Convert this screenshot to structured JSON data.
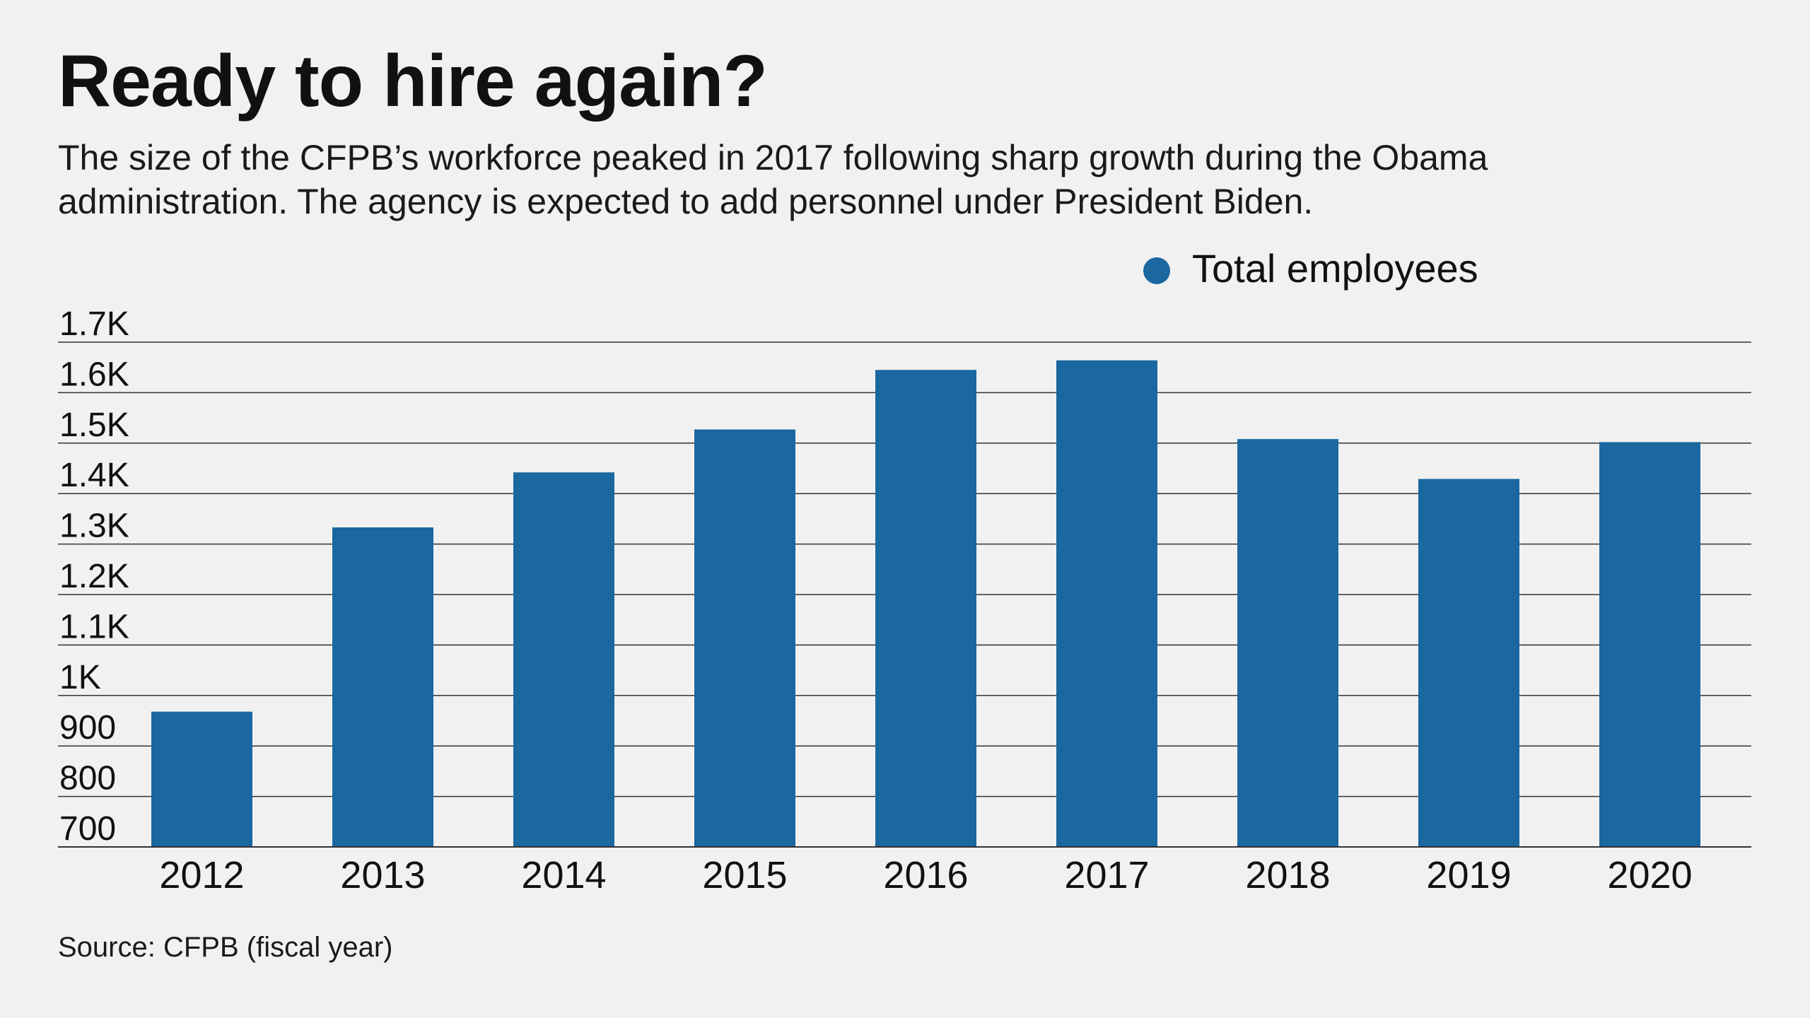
{
  "header": {
    "title": "Ready to hire again?",
    "subtitle": "The size of the CFPB’s workforce peaked in 2017 following sharp growth during the Obama administration. The agency is expected to add personnel under President Biden."
  },
  "footer": {
    "source": "Source: CFPB (fiscal year)"
  },
  "colors": {
    "bar": "#1b67a0",
    "gridline": "#333333",
    "background": "#f0f1f0",
    "text": "#111111"
  },
  "chart_data": {
    "type": "bar",
    "title": "Ready to hire again?",
    "xlabel": "",
    "ylabel": "",
    "categories": [
      "2012",
      "2013",
      "2014",
      "2015",
      "2016",
      "2017",
      "2018",
      "2019",
      "2020"
    ],
    "series": [
      {
        "name": "Total employees",
        "values": [
          968,
          1333,
          1442,
          1527,
          1645,
          1664,
          1508,
          1429,
          1502
        ]
      }
    ],
    "ylim": [
      700,
      1700
    ],
    "yticks": [
      700,
      800,
      900,
      1000,
      1100,
      1200,
      1300,
      1400,
      1500,
      1600,
      1700
    ],
    "ytick_labels": [
      "700",
      "800",
      "900",
      "1K",
      "1.1K",
      "1.2K",
      "1.3K",
      "1.4K",
      "1.5K",
      "1.6K",
      "1.7K"
    ],
    "grid": true,
    "legend_position": "top-right"
  }
}
